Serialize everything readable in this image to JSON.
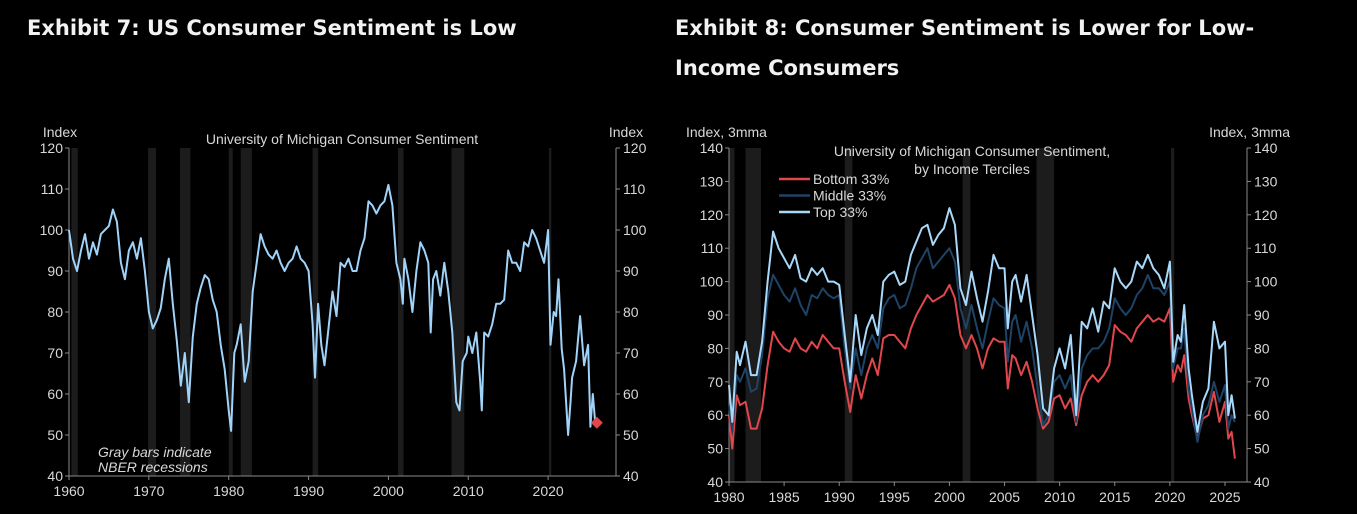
{
  "chart_data": [
    {
      "type": "line",
      "exhibit_title": "Exhibit 7: US Consumer Sentiment is Low",
      "title": "University of Michigan Consumer Sentiment",
      "ylabel_left": "Index",
      "ylabel_right": "Index",
      "xlim": [
        1960,
        2028.5
      ],
      "ylim": [
        40,
        120
      ],
      "xticks": [
        1960,
        1970,
        1980,
        1990,
        2000,
        2010,
        2020
      ],
      "yticks": [
        40,
        50,
        60,
        70,
        80,
        90,
        100,
        110,
        120
      ],
      "annotation": [
        "Gray bars indicate",
        "NBER recessions"
      ],
      "recessions": [
        [
          1960.3,
          1961.1
        ],
        [
          1969.9,
          1970.9
        ],
        [
          1973.9,
          1975.2
        ],
        [
          1980.0,
          1980.5
        ],
        [
          1981.5,
          1982.9
        ],
        [
          1990.5,
          1991.2
        ],
        [
          2001.2,
          2001.9
        ],
        [
          2007.9,
          2009.5
        ],
        [
          2020.1,
          2020.4
        ]
      ],
      "series": [
        {
          "name": "Consumer Sentiment",
          "color": "#9fd3fa",
          "x": [
            1960,
            1960.5,
            1961,
            1961.5,
            1962,
            1962.5,
            1963,
            1963.5,
            1964,
            1965,
            1965.5,
            1966,
            1966.5,
            1967,
            1967.5,
            1968,
            1968.5,
            1969,
            1969.5,
            1970,
            1970.5,
            1971,
            1971.5,
            1972,
            1972.5,
            1973,
            1973.5,
            1974,
            1974.5,
            1975,
            1975.5,
            1976,
            1976.5,
            1977,
            1977.5,
            1978,
            1978.5,
            1979,
            1979.5,
            1980,
            1980.3,
            1980.7,
            1981,
            1981.5,
            1982,
            1982.5,
            1983,
            1983.5,
            1984,
            1984.5,
            1985,
            1985.5,
            1986,
            1986.5,
            1987,
            1987.5,
            1988,
            1988.5,
            1989,
            1989.5,
            1990,
            1990.5,
            1990.8,
            1991.2,
            1991.6,
            1992,
            1992.5,
            1993,
            1993.5,
            1994,
            1994.5,
            1995,
            1995.5,
            1996,
            1996.5,
            1997,
            1997.5,
            1998,
            1998.5,
            1999,
            1999.5,
            2000,
            2000.5,
            2001,
            2001.5,
            2001.8,
            2002,
            2002.5,
            2003,
            2003.5,
            2004,
            2004.5,
            2005,
            2005.3,
            2005.6,
            2006,
            2006.5,
            2007,
            2007.5,
            2008,
            2008.5,
            2008.9,
            2009.3,
            2009.8,
            2010,
            2010.5,
            2011,
            2011.5,
            2011.7,
            2012,
            2012.5,
            2013,
            2013.5,
            2014,
            2014.5,
            2015,
            2015.5,
            2016,
            2016.5,
            2017,
            2017.5,
            2018,
            2018.5,
            2019,
            2019.5,
            2020,
            2020.3,
            2020.7,
            2021,
            2021.3,
            2021.7,
            2022,
            2022.5,
            2022.8,
            2023,
            2023.5,
            2024,
            2024.5,
            2025,
            2025.3,
            2025.6,
            2025.9
          ],
          "y": [
            100,
            93,
            90,
            95,
            99,
            93,
            97,
            94,
            99,
            101,
            105,
            102,
            92,
            88,
            95,
            97,
            93,
            98,
            90,
            80,
            76,
            78,
            81,
            88,
            93,
            82,
            73,
            62,
            70,
            58,
            74,
            82,
            86,
            89,
            88,
            83,
            80,
            72,
            66,
            56,
            51,
            70,
            72,
            77,
            63,
            68,
            85,
            92,
            99,
            96,
            94,
            93,
            95,
            92,
            90,
            92,
            93,
            96,
            93,
            92,
            90,
            77,
            64,
            82,
            72,
            67,
            76,
            85,
            79,
            92,
            91,
            93,
            90,
            90,
            95,
            98,
            107,
            106,
            104,
            106,
            107,
            111,
            106,
            92,
            88,
            82,
            93,
            88,
            80,
            90,
            97,
            95,
            92,
            75,
            88,
            90,
            84,
            92,
            85,
            75,
            58,
            56,
            68,
            70,
            74,
            70,
            75,
            63,
            56,
            75,
            74,
            77,
            82,
            82,
            83,
            95,
            92,
            92,
            90,
            97,
            96,
            100,
            98,
            95,
            92,
            100,
            72,
            80,
            79,
            88,
            71,
            66,
            50,
            58,
            64,
            68,
            79,
            67,
            72,
            52,
            60,
            53
          ]
        }
      ],
      "latest_marker": {
        "x": 2026.1,
        "y": 53,
        "color": "#e0474c"
      }
    },
    {
      "type": "line",
      "exhibit_title": "Exhibit 8: Consumer Sentiment is Lower for Low-Income Consumers",
      "title": [
        "University of Michigan Consumer Sentiment,",
        "by Income Terciles"
      ],
      "ylabel_left": "Index, 3mma",
      "ylabel_right": "Index, 3mma",
      "xlim": [
        1980,
        2027
      ],
      "ylim": [
        40,
        140
      ],
      "xticks": [
        1980,
        1985,
        1990,
        1995,
        2000,
        2005,
        2010,
        2015,
        2020,
        2025
      ],
      "yticks": [
        40,
        50,
        60,
        70,
        80,
        90,
        100,
        110,
        120,
        130,
        140
      ],
      "legend_position": "top-left",
      "recessions": [
        [
          1980.0,
          1980.5
        ],
        [
          1981.5,
          1982.9
        ],
        [
          1990.5,
          1991.2
        ],
        [
          2001.2,
          2001.9
        ],
        [
          2007.9,
          2009.5
        ],
        [
          2020.1,
          2020.4
        ]
      ],
      "x": [
        1980,
        1980.3,
        1980.7,
        1981,
        1981.5,
        1982,
        1982.5,
        1983,
        1983.5,
        1984,
        1984.5,
        1985,
        1985.5,
        1986,
        1986.5,
        1987,
        1987.5,
        1988,
        1988.5,
        1989,
        1989.5,
        1990,
        1990.5,
        1991,
        1991.5,
        1992,
        1992.5,
        1993,
        1993.5,
        1994,
        1994.5,
        1995,
        1995.5,
        1996,
        1996.5,
        1997,
        1997.5,
        1998,
        1998.5,
        1999,
        1999.5,
        2000,
        2000.5,
        2001,
        2001.5,
        2002,
        2002.5,
        2003,
        2003.5,
        2004,
        2004.5,
        2005,
        2005.3,
        2005.7,
        2006,
        2006.5,
        2007,
        2007.5,
        2008,
        2008.5,
        2009,
        2009.5,
        2010,
        2010.5,
        2011,
        2011.5,
        2012,
        2012.5,
        2013,
        2013.5,
        2014,
        2014.5,
        2015,
        2015.5,
        2016,
        2016.5,
        2017,
        2017.5,
        2018,
        2018.5,
        2019,
        2019.5,
        2020,
        2020.3,
        2020.7,
        2021,
        2021.3,
        2021.7,
        2022,
        2022.5,
        2023,
        2023.5,
        2024,
        2024.5,
        2025,
        2025.3,
        2025.6,
        2025.9
      ],
      "series": [
        {
          "name": "Bottom 33%",
          "color": "#e0474c",
          "y": [
            60,
            50,
            66,
            63,
            64,
            56,
            56,
            62,
            75,
            85,
            82,
            80,
            79,
            83,
            80,
            79,
            82,
            80,
            84,
            82,
            80,
            80,
            70,
            61,
            72,
            65,
            72,
            77,
            72,
            83,
            84,
            84,
            82,
            80,
            86,
            90,
            93,
            96,
            94,
            95,
            96,
            99,
            95,
            84,
            80,
            84,
            80,
            74,
            80,
            83,
            82,
            82,
            68,
            78,
            77,
            72,
            76,
            70,
            62,
            56,
            58,
            65,
            66,
            62,
            65,
            57,
            66,
            70,
            72,
            70,
            72,
            75,
            87,
            85,
            84,
            82,
            86,
            88,
            90,
            88,
            89,
            88,
            92,
            70,
            75,
            73,
            78,
            65,
            60,
            53,
            59,
            60,
            67,
            58,
            64,
            53,
            55,
            47
          ]
        },
        {
          "name": "Middle 33%",
          "color": "#1e4366",
          "y": [
            63,
            55,
            72,
            70,
            74,
            67,
            68,
            78,
            95,
            102,
            99,
            96,
            94,
            98,
            93,
            90,
            96,
            95,
            98,
            96,
            95,
            96,
            80,
            68,
            80,
            72,
            80,
            84,
            80,
            92,
            95,
            96,
            92,
            93,
            98,
            104,
            107,
            110,
            104,
            106,
            108,
            110,
            106,
            92,
            86,
            93,
            86,
            80,
            88,
            95,
            93,
            92,
            76,
            88,
            90,
            82,
            88,
            80,
            68,
            57,
            60,
            70,
            72,
            68,
            72,
            58,
            74,
            78,
            80,
            80,
            82,
            86,
            95,
            92,
            90,
            92,
            96,
            98,
            102,
            98,
            98,
            96,
            100,
            74,
            80,
            80,
            86,
            68,
            62,
            52,
            60,
            63,
            70,
            64,
            69,
            56,
            60,
            58
          ]
        },
        {
          "name": "Top 33%",
          "color": "#a8d8fa",
          "y": [
            69,
            58,
            79,
            75,
            82,
            72,
            72,
            82,
            100,
            115,
            110,
            107,
            104,
            108,
            101,
            100,
            104,
            102,
            104,
            100,
            100,
            99,
            84,
            70,
            90,
            78,
            86,
            90,
            84,
            100,
            102,
            103,
            99,
            100,
            108,
            112,
            116,
            117,
            111,
            114,
            116,
            122,
            117,
            98,
            93,
            103,
            95,
            88,
            97,
            108,
            104,
            104,
            86,
            100,
            102,
            94,
            102,
            90,
            78,
            62,
            60,
            74,
            80,
            74,
            84,
            60,
            88,
            86,
            92,
            85,
            94,
            92,
            104,
            100,
            98,
            100,
            106,
            104,
            108,
            104,
            102,
            98,
            106,
            76,
            84,
            82,
            93,
            74,
            66,
            55,
            64,
            68,
            88,
            80,
            82,
            60,
            66,
            59
          ]
        }
      ]
    }
  ]
}
